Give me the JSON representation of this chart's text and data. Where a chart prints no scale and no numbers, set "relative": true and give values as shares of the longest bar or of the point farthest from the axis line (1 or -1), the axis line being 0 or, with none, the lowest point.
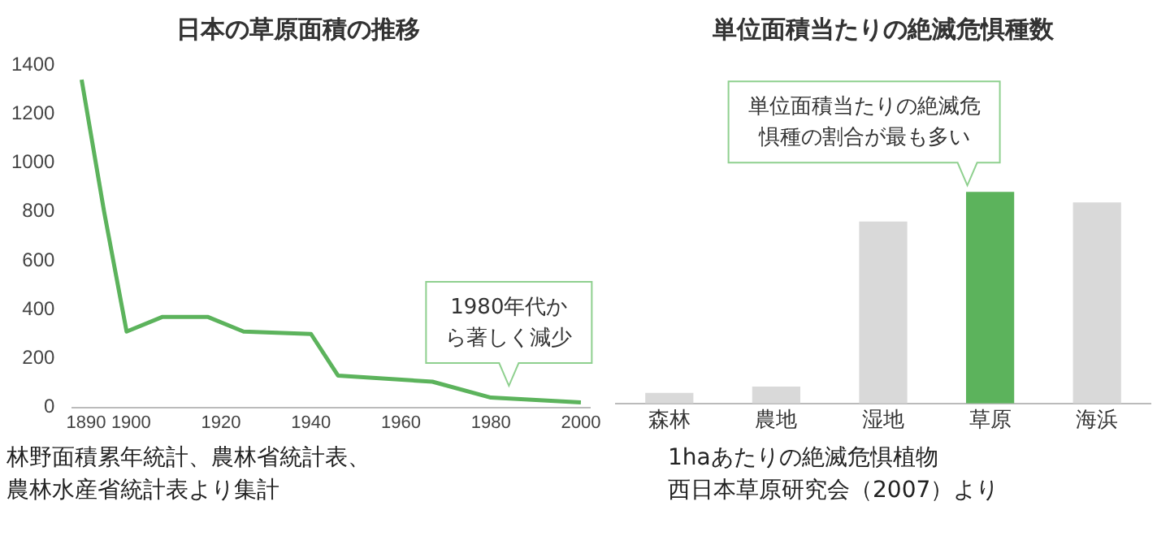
{
  "chart_data": [
    {
      "type": "line",
      "title": "日本の草原面積の推移",
      "x": [
        1889,
        1894,
        1899,
        1907,
        1917,
        1925,
        1940,
        1946,
        1967,
        1980,
        2000
      ],
      "series": [
        {
          "color": "#5cb35c",
          "values": [
            1340,
            800,
            310,
            370,
            370,
            310,
            300,
            130,
            105,
            40,
            20
          ]
        }
      ],
      "xlim": [
        1887,
        2002
      ],
      "xticks": [
        1890,
        1900,
        1920,
        1940,
        1960,
        1980,
        2000
      ],
      "ylim": [
        0,
        1400
      ],
      "yticks": [
        0,
        200,
        400,
        600,
        800,
        1000,
        1200,
        1400
      ],
      "grid": false,
      "legend": false,
      "marker": "none",
      "line_style": "solid",
      "annotations": [
        {
          "text": "1980年代から著しく減少",
          "x": 1984,
          "y": 35
        },
        "林野面積累年統計、農林省統計表、農林水産省統計表より集計"
      ]
    },
    {
      "type": "bar",
      "title": "単位面積当たりの絶滅危惧種数",
      "relative": true,
      "categories": [
        "森林",
        "農地",
        "湿地",
        "草原",
        "海浜"
      ],
      "values": [
        0.05,
        0.08,
        0.86,
        1,
        0.95
      ],
      "colors": [
        "#d9d9d9",
        "#d9d9d9",
        "#d9d9d9",
        "#5cb35c",
        "#d9d9d9"
      ],
      "grid": false,
      "legend": false,
      "annotations": [
        {
          "text": "単位面積当たりの絶滅危惧種の割合が最も多い",
          "x": "草原",
          "y": 1
        },
        "1haあたりの絶滅危惧植物",
        "西日本草原研究会（2007）より"
      ]
    }
  ]
}
